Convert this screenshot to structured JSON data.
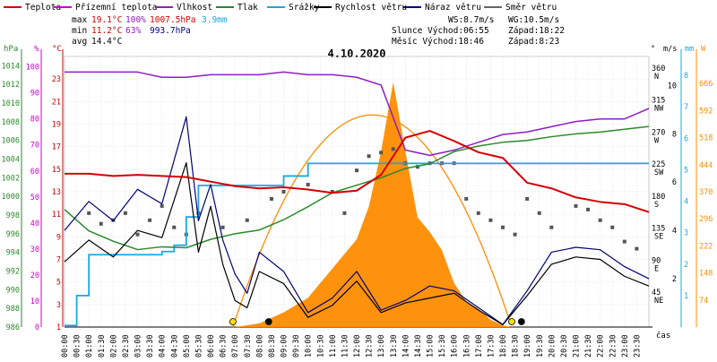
{
  "chart_data": {
    "type": "line",
    "title": "4.10.2020",
    "legend": [
      {
        "name": "Teplota",
        "color": "#d40000"
      },
      {
        "name": "Přízemní teplota",
        "color": "#cc00cc"
      },
      {
        "name": "Vlhkost",
        "color": "#8e1ec0"
      },
      {
        "name": "Tlak",
        "color": "#2a8a2a"
      },
      {
        "name": "Srážky",
        "color": "#1aa7e0"
      },
      {
        "name": "Rychlost větru",
        "color": "#000000"
      },
      {
        "name": "Náraz větru",
        "color": "#00007a"
      },
      {
        "name": "Směr větru",
        "color": "#666666"
      }
    ],
    "stats": {
      "max_label": "max",
      "max_temp": "19.1°C",
      "max_hum": "100%",
      "max_press": "1007.5hPa",
      "max_rain": "3.9mm",
      "min_label": "min",
      "min_temp": "11.2°C",
      "min_hum": "63%",
      "min_press": "993.7hPa",
      "avg_label": "avg",
      "avg_temp": "14.4°C"
    },
    "info": {
      "ws": "WS:8.7m/s",
      "wg": "WG:10.5m/s",
      "slunce": "Slunce Východ:06:55",
      "slunce_zapad": "Západ:18:22",
      "mesic": "Měsíc Východ:18:46",
      "mesic_zapad": "Západ:8:23"
    },
    "axes": {
      "hpa": {
        "label": "hPa",
        "ticks": [
          "1014",
          "1012",
          "1010",
          "1008",
          "1006",
          "1004",
          "1002",
          "1000",
          "998",
          "996",
          "994",
          "992",
          "990",
          "988",
          "986"
        ],
        "range": [
          986,
          1015
        ]
      },
      "pct": {
        "label": "%",
        "ticks": [
          "100",
          "90",
          "80",
          "70",
          "60",
          "50",
          "40",
          "30",
          "20",
          "10",
          "0"
        ]
      },
      "temp": {
        "label": "°C",
        "ticks": [
          "23",
          "21",
          "19",
          "17",
          "15",
          "13",
          "11",
          "9",
          "7",
          "5",
          "3",
          "1"
        ],
        "range": [
          1,
          25
        ]
      },
      "dir": {
        "label": "°",
        "ticks": [
          "360 N",
          "315 NW",
          "270 W",
          "225 SW",
          "180 S",
          "135 SE",
          "90 E",
          "45 NE"
        ]
      },
      "ms": {
        "label": "m/s",
        "ticks": [
          "10",
          "8",
          "6",
          "4",
          "2"
        ]
      },
      "mm": {
        "label": "mm",
        "ticks": [
          "8",
          "7",
          "6",
          "5",
          "4",
          "3",
          "2",
          "1"
        ]
      },
      "wm2": {
        "label": "W",
        "ticks": [
          "666",
          "592",
          "518",
          "444",
          "370",
          "296",
          "222",
          "148",
          "74"
        ]
      },
      "xlabel": "čas",
      "x_ticks": [
        "00:00",
        "00:30",
        "01:00",
        "01:30",
        "02:00",
        "02:30",
        "03:00",
        "03:30",
        "04:00",
        "04:30",
        "05:00",
        "05:30",
        "06:00",
        "06:30",
        "07:00",
        "07:30",
        "08:00",
        "08:30",
        "09:00",
        "09:30",
        "10:00",
        "10:30",
        "11:00",
        "11:30",
        "12:00",
        "12:30",
        "13:00",
        "13:30",
        "14:00",
        "14:30",
        "15:00",
        "15:30",
        "16:00",
        "16:30",
        "17:00",
        "17:30",
        "18:00",
        "18:30",
        "19:00",
        "19:30",
        "20:00",
        "20:30",
        "21:00",
        "21:30",
        "22:00",
        "22:30",
        "23:00",
        "23:30"
      ]
    },
    "series": [
      {
        "name": "Teplota",
        "unit": "°C",
        "x": [
          0,
          1,
          2,
          3,
          4,
          5,
          6,
          7,
          8,
          9,
          10,
          11,
          12,
          13,
          14,
          15,
          16,
          17,
          18,
          19,
          20,
          21,
          22,
          23,
          24
        ],
        "values": [
          14.6,
          14.6,
          14.4,
          14.5,
          14.4,
          14.3,
          13.9,
          13.5,
          13.3,
          13.4,
          13.2,
          12.9,
          13.1,
          14.5,
          17.8,
          18.4,
          17.5,
          16.5,
          16.0,
          13.8,
          13.3,
          12.5,
          12.1,
          11.9,
          11.2
        ]
      },
      {
        "name": "Vlhkost",
        "unit": "%",
        "x": [
          0,
          1,
          2,
          3,
          4,
          5,
          6,
          7,
          8,
          9,
          10,
          11,
          12,
          13,
          14,
          15,
          16,
          17,
          18,
          19,
          20,
          21,
          22,
          23,
          24
        ],
        "values": [
          98,
          98,
          98,
          98,
          96,
          96,
          97,
          97,
          97,
          98,
          97,
          97,
          96,
          93,
          68,
          66,
          68,
          71,
          74,
          75,
          77,
          79,
          80,
          80,
          84
        ]
      },
      {
        "name": "Tlak",
        "unit": "hPa",
        "x": [
          0,
          1,
          2,
          3,
          4,
          5,
          6,
          7,
          8,
          9,
          10,
          11,
          12,
          13,
          14,
          15,
          16,
          17,
          18,
          19,
          20,
          21,
          22,
          23,
          24
        ],
        "values": [
          998.6,
          996.3,
          995.2,
          994.3,
          994.6,
          994.5,
          995.4,
          996.0,
          996.4,
          997.5,
          998.9,
          1000.4,
          1001.2,
          1002.0,
          1003.0,
          1003.5,
          1004.8,
          1005.4,
          1005.8,
          1006.0,
          1006.4,
          1006.7,
          1006.9,
          1007.2,
          1007.5
        ]
      },
      {
        "name": "Srážky",
        "unit": "mm",
        "x": [
          0,
          0.5,
          1,
          2,
          3,
          4,
          4.5,
          5,
          5.5,
          6,
          7,
          8,
          9,
          10,
          11,
          12,
          13,
          14,
          15,
          16,
          17,
          18,
          19,
          20,
          21,
          22,
          23,
          24
        ],
        "values": [
          0.05,
          1.0,
          2.3,
          2.3,
          2.3,
          2.4,
          2.6,
          3.5,
          4.5,
          4.5,
          4.5,
          4.5,
          4.8,
          5.2,
          5.2,
          5.2,
          5.2,
          5.2,
          5.2,
          5.2,
          5.2,
          5.2,
          5.2,
          5.2,
          5.2,
          5.2,
          5.2,
          5.2
        ]
      },
      {
        "name": "Rychlost větru",
        "unit": "m/s",
        "x": [
          0,
          1,
          2,
          3,
          4,
          5,
          5.5,
          6,
          6.5,
          7,
          7.5,
          8,
          9,
          10,
          11,
          12,
          13,
          14,
          15,
          16,
          17,
          18,
          19,
          20,
          21,
          22,
          23,
          24
        ],
        "values": [
          2.7,
          3.6,
          2.9,
          4.0,
          3.7,
          6.8,
          3.1,
          5.0,
          2.6,
          1.1,
          0.8,
          2.3,
          1.8,
          0.4,
          0.9,
          1.9,
          0.6,
          1.0,
          1.2,
          1.4,
          0.7,
          0.1,
          1.3,
          2.6,
          2.9,
          2.8,
          2.1,
          1.7
        ]
      },
      {
        "name": "Náraz větru",
        "unit": "m/s",
        "x": [
          0,
          1,
          2,
          3,
          4,
          5,
          5.5,
          6,
          6.5,
          7,
          7.5,
          8,
          9,
          10,
          11,
          12,
          13,
          14,
          15,
          16,
          17,
          18,
          19,
          20,
          21,
          22,
          23,
          24
        ],
        "values": [
          4.0,
          5.2,
          4.4,
          5.7,
          5.1,
          8.7,
          4.4,
          5.9,
          3.6,
          2.2,
          1.4,
          3.1,
          2.3,
          0.6,
          1.2,
          2.3,
          0.7,
          1.1,
          1.7,
          1.5,
          0.8,
          0.1,
          1.5,
          3.1,
          3.3,
          3.2,
          2.5,
          2.0
        ]
      },
      {
        "name": "Solar",
        "unit": "W",
        "x": [
          7.0,
          8,
          9,
          10,
          11,
          12,
          12.5,
          13,
          13.5,
          14,
          14.5,
          15,
          15.5,
          16,
          16.5,
          17,
          17.5,
          18,
          18.3
        ],
        "values": [
          0,
          10,
          40,
          80,
          160,
          240,
          330,
          480,
          670,
          480,
          300,
          260,
          210,
          120,
          70,
          50,
          20,
          5,
          0
        ]
      }
    ],
    "sun_theoretical_peak_W": 580,
    "wind_direction_points": [
      [
        1.0,
        160
      ],
      [
        1.5,
        145
      ],
      [
        2.0,
        150
      ],
      [
        2.5,
        160
      ],
      [
        3.0,
        130
      ],
      [
        3.5,
        150
      ],
      [
        4.0,
        170
      ],
      [
        4.5,
        140
      ],
      [
        5.0,
        130
      ],
      [
        5.5,
        160
      ],
      [
        6.5,
        140
      ],
      [
        7.5,
        150
      ],
      [
        8.5,
        180
      ],
      [
        9.0,
        190
      ],
      [
        10.0,
        200
      ],
      [
        11.0,
        190
      ],
      [
        11.5,
        160
      ],
      [
        12.0,
        220
      ],
      [
        12.5,
        240
      ],
      [
        13.0,
        245
      ],
      [
        13.5,
        250
      ],
      [
        14.0,
        230
      ],
      [
        14.5,
        225
      ],
      [
        15.0,
        230
      ],
      [
        15.5,
        230
      ],
      [
        16.0,
        230
      ],
      [
        16.5,
        180
      ],
      [
        17.0,
        160
      ],
      [
        17.5,
        150
      ],
      [
        18.0,
        140
      ],
      [
        18.5,
        130
      ],
      [
        19.0,
        180
      ],
      [
        19.5,
        160
      ],
      [
        20.0,
        140
      ],
      [
        21.0,
        170
      ],
      [
        21.5,
        165
      ],
      [
        22.0,
        150
      ],
      [
        22.5,
        140
      ],
      [
        23.0,
        120
      ],
      [
        23.5,
        110
      ]
    ]
  }
}
